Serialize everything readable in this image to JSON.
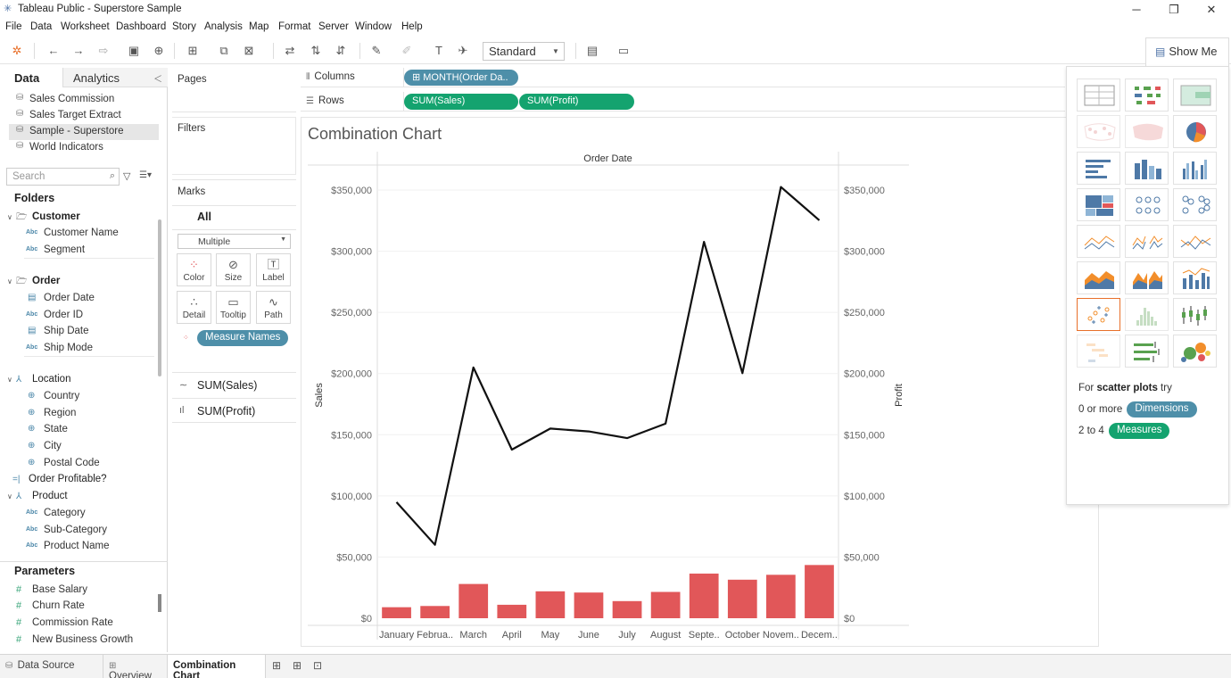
{
  "window": {
    "title": "Tableau Public - Superstore Sample",
    "minimize": "─",
    "restore": "❐",
    "close": "✕"
  },
  "menu": [
    "File",
    "Data",
    "Worksheet",
    "Dashboard",
    "Story",
    "Analysis",
    "Map",
    "Format",
    "Server",
    "Window",
    "Help"
  ],
  "toolbar": {
    "fit_select": "Standard",
    "show_me_label": "Show Me"
  },
  "data_pane": {
    "tab_data": "Data",
    "tab_analytics": "Analytics",
    "datasources": [
      {
        "label": "Sales Commission",
        "selected": false
      },
      {
        "label": "Sales Target Extract",
        "selected": false
      },
      {
        "label": "Sample - Superstore",
        "selected": true
      },
      {
        "label": "World Indicators",
        "selected": false
      }
    ],
    "search_placeholder": "Search",
    "folders_heading": "Folders",
    "folders": {
      "customer": {
        "label": "Customer",
        "fields": [
          "Customer Name",
          "Segment"
        ]
      },
      "order": {
        "label": "Order",
        "fields": [
          "Order Date",
          "Order ID",
          "Ship Date",
          "Ship Mode"
        ]
      },
      "location": {
        "label": "Location",
        "fields": [
          "Country",
          "Region",
          "State",
          "City",
          "Postal Code"
        ]
      },
      "order_profitable": "Order Profitable?",
      "product": {
        "label": "Product",
        "fields": [
          "Category",
          "Sub-Category",
          "Product Name"
        ]
      }
    },
    "parameters_heading": "Parameters",
    "parameters": [
      "Base Salary",
      "Churn Rate",
      "Commission Rate",
      "New Business Growth"
    ]
  },
  "cards": {
    "pages": "Pages",
    "filters": "Filters",
    "marks": "Marks",
    "marks_all": "All",
    "mark_type": "Multiple",
    "mark_buttons": [
      "Color",
      "Size",
      "Label",
      "Detail",
      "Tooltip",
      "Path"
    ],
    "measure_names_pill": "Measure Names",
    "sum_rows": [
      "SUM(Sales)",
      "SUM(Profit)"
    ]
  },
  "shelves": {
    "columns_label": "Columns",
    "rows_label": "Rows",
    "columns_pills": [
      "⊞ MONTH(Order Da.."
    ],
    "rows_pills": [
      "SUM(Sales)",
      "SUM(Profit)"
    ]
  },
  "viz": {
    "title": "Combination Chart"
  },
  "chart_data": {
    "type": "bar",
    "title": "Combination Chart",
    "header": "Order Date",
    "categories": [
      "January",
      "Februa..",
      "March",
      "April",
      "May",
      "June",
      "July",
      "August",
      "Septe..",
      "October",
      "Novem..",
      "Decem.."
    ],
    "ylabel_left": "Sales",
    "ylabel_right": "Profit",
    "ylim": [
      0,
      370000
    ],
    "yticks": [
      0,
      50000,
      100000,
      150000,
      200000,
      250000,
      300000,
      350000
    ],
    "ytick_labels": [
      "$0",
      "$50,000",
      "$100,000",
      "$150,000",
      "$200,000",
      "$250,000",
      "$300,000",
      "$350,000"
    ],
    "series": [
      {
        "name": "SUM(Profit)",
        "mark": "bar",
        "color": "#e15759",
        "values": [
          9000,
          10000,
          28000,
          11000,
          22000,
          21000,
          14000,
          21500,
          36500,
          31500,
          35500,
          43500
        ]
      },
      {
        "name": "SUM(Sales)",
        "mark": "line",
        "color": "#111111",
        "values": [
          94900,
          60000,
          205000,
          137800,
          155000,
          152700,
          147200,
          159000,
          307600,
          200300,
          352500,
          325300
        ]
      }
    ]
  },
  "show_me": {
    "hint_prefix": "For ",
    "hint_bold": "scatter plots",
    "hint_suffix": " try",
    "line1_prefix": "0 or more",
    "dimensions_pill": "Dimensions",
    "line2_prefix": "2 to 4",
    "measures_pill": "Measures",
    "colors": {
      "dimensions": "#4e8fa9",
      "measures": "#14a36f",
      "selected_border": "#e8702a"
    }
  },
  "bottom_tabs": {
    "data_source": "Data Source",
    "sheets": [
      "Overview",
      "Combination Chart"
    ],
    "active": "Combination Chart"
  }
}
